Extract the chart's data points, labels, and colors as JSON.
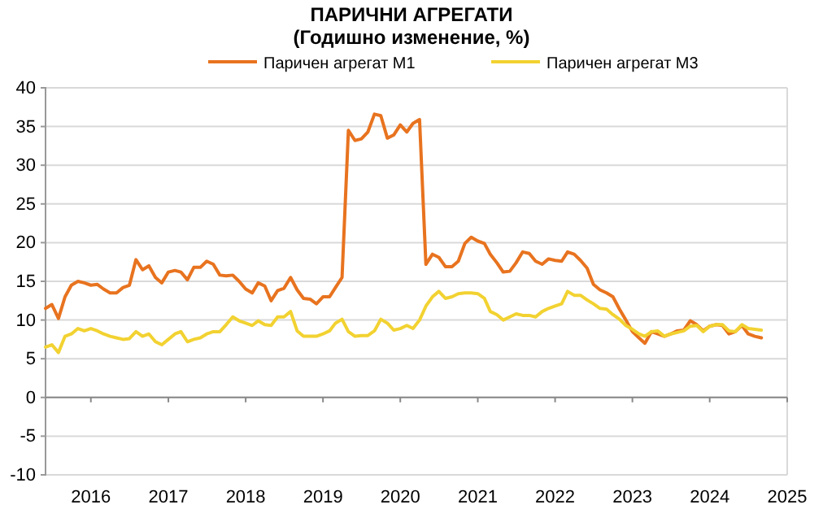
{
  "chart_data": {
    "type": "line",
    "title": "ПАРИЧНИ АГРЕГАТИ",
    "subtitle": "(Годишно  изменение, %)",
    "x": [
      "2015-06",
      "2015-07",
      "2015-08",
      "2015-09",
      "2015-10",
      "2015-11",
      "2015-12",
      "2016-01",
      "2016-02",
      "2016-03",
      "2016-04",
      "2016-05",
      "2016-06",
      "2016-07",
      "2016-08",
      "2016-09",
      "2016-10",
      "2016-11",
      "2016-12",
      "2017-01",
      "2017-02",
      "2017-03",
      "2017-04",
      "2017-05",
      "2017-06",
      "2017-07",
      "2017-08",
      "2017-09",
      "2017-10",
      "2017-11",
      "2017-12",
      "2018-01",
      "2018-02",
      "2018-03",
      "2018-04",
      "2018-05",
      "2018-06",
      "2018-07",
      "2018-08",
      "2018-09",
      "2018-10",
      "2018-11",
      "2018-12",
      "2019-01",
      "2019-02",
      "2019-03",
      "2019-04",
      "2019-05",
      "2019-06",
      "2019-07",
      "2019-08",
      "2019-09",
      "2019-10",
      "2019-11",
      "2019-12",
      "2020-01",
      "2020-02",
      "2020-03",
      "2020-04",
      "2020-05",
      "2020-06",
      "2020-07",
      "2020-08",
      "2020-09",
      "2020-10",
      "2020-11",
      "2020-12",
      "2021-01",
      "2021-02",
      "2021-03",
      "2021-04",
      "2021-05",
      "2021-06",
      "2021-07",
      "2021-08",
      "2021-09",
      "2021-10",
      "2021-11",
      "2021-12",
      "2022-01",
      "2022-02",
      "2022-03",
      "2022-04",
      "2022-05",
      "2022-06",
      "2022-07",
      "2022-08",
      "2022-09",
      "2022-10",
      "2022-11",
      "2022-12",
      "2023-01",
      "2023-02",
      "2023-03",
      "2023-04",
      "2023-05",
      "2023-06",
      "2023-07",
      "2023-08",
      "2023-09",
      "2023-10",
      "2023-11",
      "2023-12",
      "2024-01",
      "2024-02",
      "2024-03",
      "2024-04",
      "2024-05",
      "2024-06",
      "2024-07",
      "2024-08",
      "2024-09"
    ],
    "series": [
      {
        "name": "Паричен агрегат М1",
        "color": "#e8731f",
        "values": [
          11.5,
          12,
          10.2,
          13,
          14.5,
          15,
          14.8,
          14.5,
          14.6,
          14,
          13.5,
          13.5,
          14.2,
          14.5,
          17.8,
          16.5,
          17,
          15.5,
          14.8,
          16.2,
          16.4,
          16.2,
          15.2,
          16.8,
          16.8,
          17.6,
          17.2,
          15.8,
          15.7,
          15.8,
          15,
          14,
          13.5,
          14.8,
          14.4,
          12.5,
          13.8,
          14.1,
          15.5,
          13.9,
          12.8,
          12.7,
          12.1,
          13,
          13,
          14.2,
          15.5,
          34.5,
          33.2,
          33.4,
          34.3,
          36.6,
          36.4,
          33.5,
          33.9,
          35.2,
          34.3,
          35.4,
          35.9,
          17.2,
          18.5,
          18.1,
          16.9,
          16.9,
          17.6,
          19.9,
          20.7,
          20.2,
          19.9,
          18.5,
          17.4,
          16.2,
          16.3,
          17.4,
          18.8,
          18.6,
          17.6,
          17.2,
          17.9,
          17.7,
          17.6,
          18.8,
          18.5,
          17.7,
          16.7,
          14.6,
          13.9,
          13.5,
          13,
          11.4,
          10,
          8.5,
          7.7,
          7,
          8.5,
          8.2,
          7.9,
          8.2,
          8.6,
          8.7,
          9.9,
          9.4,
          8.6,
          9.2,
          9.4,
          9.3,
          8.2,
          8.5,
          9.3,
          8.2,
          7.9,
          7.7
        ]
      },
      {
        "name": "Паричен агрегат М3",
        "color": "#f2d231",
        "values": [
          6.5,
          6.8,
          5.8,
          7.9,
          8.2,
          8.9,
          8.6,
          8.9,
          8.6,
          8.2,
          7.9,
          7.7,
          7.5,
          7.6,
          8.5,
          7.9,
          8.2,
          7.2,
          6.8,
          7.5,
          8.2,
          8.5,
          7.2,
          7.5,
          7.7,
          8.2,
          8.5,
          8.5,
          9.4,
          10.4,
          9.9,
          9.6,
          9.3,
          9.9,
          9.4,
          9.3,
          10.4,
          10.4,
          11.1,
          8.6,
          7.9,
          7.9,
          7.9,
          8.2,
          8.6,
          9.6,
          10.1,
          8.5,
          7.9,
          8,
          8,
          8.6,
          10.1,
          9.6,
          8.7,
          8.9,
          9.3,
          8.9,
          10,
          11.8,
          13,
          13.7,
          12.8,
          13,
          13.4,
          13.5,
          13.5,
          13.4,
          12.8,
          11.1,
          10.7,
          10,
          10.4,
          10.8,
          10.6,
          10.6,
          10.4,
          11.1,
          11.5,
          11.8,
          12.1,
          13.7,
          13.2,
          13.2,
          12.6,
          12.1,
          11.5,
          11.4,
          10.7,
          10.1,
          9.3,
          8.8,
          8.2,
          7.9,
          8.5,
          8.6,
          7.9,
          8.2,
          8.4,
          8.6,
          9.2,
          9.3,
          8.5,
          9.2,
          9.4,
          9.4,
          8.6,
          8.5,
          9.4,
          8.9,
          8.8,
          8.7
        ]
      }
    ],
    "xlim": [
      "2015-06",
      "2025-01"
    ],
    "xticks": [
      {
        "value": "2016-01",
        "label": "2016"
      },
      {
        "value": "2017-01",
        "label": "2017"
      },
      {
        "value": "2018-01",
        "label": "2018"
      },
      {
        "value": "2019-01",
        "label": "2019"
      },
      {
        "value": "2020-01",
        "label": "2020"
      },
      {
        "value": "2021-01",
        "label": "2021"
      },
      {
        "value": "2022-01",
        "label": "2022"
      },
      {
        "value": "2023-01",
        "label": "2023"
      },
      {
        "value": "2024-01",
        "label": "2024"
      },
      {
        "value": "2025-01",
        "label": "2025"
      }
    ],
    "ylim": [
      -10,
      40
    ],
    "yticks": [
      -10,
      -5,
      0,
      5,
      10,
      15,
      20,
      25,
      30,
      35,
      40
    ],
    "ref_lines": [
      {
        "axis": "y",
        "value": 0,
        "color": "#888888"
      }
    ],
    "grid": "y",
    "legend": "top"
  }
}
